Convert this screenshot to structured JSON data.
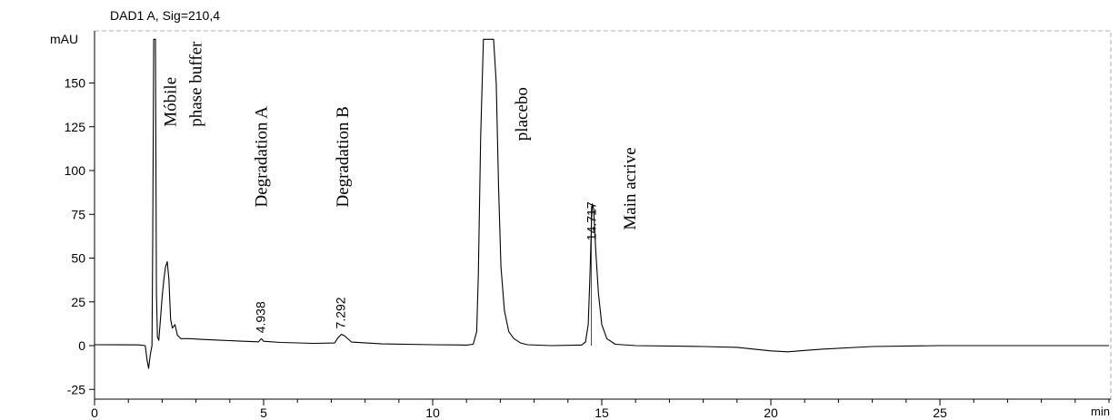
{
  "chart_data": {
    "type": "line",
    "title": "DAD1 A, Sig=210,4",
    "ylabel": "mAU",
    "xlabel": "min",
    "xlim": [
      0,
      30
    ],
    "ylim": [
      -25,
      175
    ],
    "x_ticks": [
      0,
      5,
      10,
      15,
      20,
      25
    ],
    "y_ticks": [
      -25,
      0,
      25,
      50,
      75,
      100,
      125,
      150
    ],
    "grid": false,
    "series": [
      {
        "points": [
          [
            0,
            0.5
          ],
          [
            1.3,
            0.4
          ],
          [
            1.5,
            0
          ],
          [
            1.55,
            -8
          ],
          [
            1.6,
            -13
          ],
          [
            1.65,
            -5
          ],
          [
            1.7,
            0
          ],
          [
            1.72,
            60
          ],
          [
            1.75,
            175
          ],
          [
            1.8,
            175
          ],
          [
            1.83,
            30
          ],
          [
            1.86,
            5
          ],
          [
            1.9,
            3
          ],
          [
            1.95,
            15
          ],
          [
            2.0,
            28
          ],
          [
            2.05,
            38
          ],
          [
            2.1,
            45
          ],
          [
            2.15,
            48
          ],
          [
            2.2,
            38
          ],
          [
            2.25,
            15
          ],
          [
            2.3,
            10
          ],
          [
            2.38,
            12
          ],
          [
            2.45,
            6
          ],
          [
            2.55,
            4
          ],
          [
            2.8,
            4
          ],
          [
            3.2,
            3.5
          ],
          [
            3.8,
            3
          ],
          [
            4.4,
            2.5
          ],
          [
            4.85,
            2.2
          ],
          [
            4.93,
            4
          ],
          [
            5.0,
            2.5
          ],
          [
            5.5,
            1.8
          ],
          [
            6.5,
            1.3
          ],
          [
            7.1,
            1.5
          ],
          [
            7.2,
            4.5
          ],
          [
            7.3,
            6.5
          ],
          [
            7.4,
            5.5
          ],
          [
            7.6,
            2
          ],
          [
            8.5,
            1
          ],
          [
            10.0,
            0.5
          ],
          [
            11.0,
            0.3
          ],
          [
            11.2,
            0.8
          ],
          [
            11.3,
            8
          ],
          [
            11.35,
            40
          ],
          [
            11.42,
            120
          ],
          [
            11.5,
            175
          ],
          [
            11.8,
            175
          ],
          [
            11.88,
            150
          ],
          [
            11.95,
            90
          ],
          [
            12.02,
            45
          ],
          [
            12.12,
            20
          ],
          [
            12.25,
            8
          ],
          [
            12.4,
            4
          ],
          [
            12.6,
            1.5
          ],
          [
            12.8,
            0.5
          ],
          [
            13.5,
            0
          ],
          [
            14.4,
            0.3
          ],
          [
            14.52,
            2
          ],
          [
            14.6,
            12
          ],
          [
            14.65,
            40
          ],
          [
            14.7,
            72
          ],
          [
            14.72,
            81
          ],
          [
            14.76,
            78
          ],
          [
            14.82,
            55
          ],
          [
            14.9,
            30
          ],
          [
            15.0,
            12
          ],
          [
            15.15,
            4
          ],
          [
            15.4,
            0.8
          ],
          [
            16.0,
            0
          ],
          [
            18.0,
            -0.5
          ],
          [
            19.0,
            -1
          ],
          [
            20.0,
            -3
          ],
          [
            20.5,
            -3.5
          ],
          [
            21.5,
            -2
          ],
          [
            23.0,
            -0.5
          ],
          [
            25.0,
            0
          ],
          [
            28.0,
            0
          ],
          [
            30.0,
            0
          ]
        ]
      }
    ],
    "peak_labels": [
      {
        "x": 4.938,
        "text": "4.938"
      },
      {
        "x": 7.292,
        "text": "7.292"
      },
      {
        "x": 14.717,
        "text": "14.717"
      }
    ],
    "annotations": [
      {
        "x": 2.4,
        "y": 125,
        "lines": [
          "Móbile",
          "phase buffer"
        ]
      },
      {
        "x": 5.1,
        "y": 79,
        "lines": [
          "Degradation A"
        ]
      },
      {
        "x": 7.5,
        "y": 79,
        "lines": [
          "Degradation B"
        ]
      },
      {
        "x": 12.8,
        "y": 117,
        "lines": [
          "placebo"
        ]
      },
      {
        "x": 16.0,
        "y": 66,
        "lines": [
          "Main acrive"
        ]
      }
    ]
  }
}
